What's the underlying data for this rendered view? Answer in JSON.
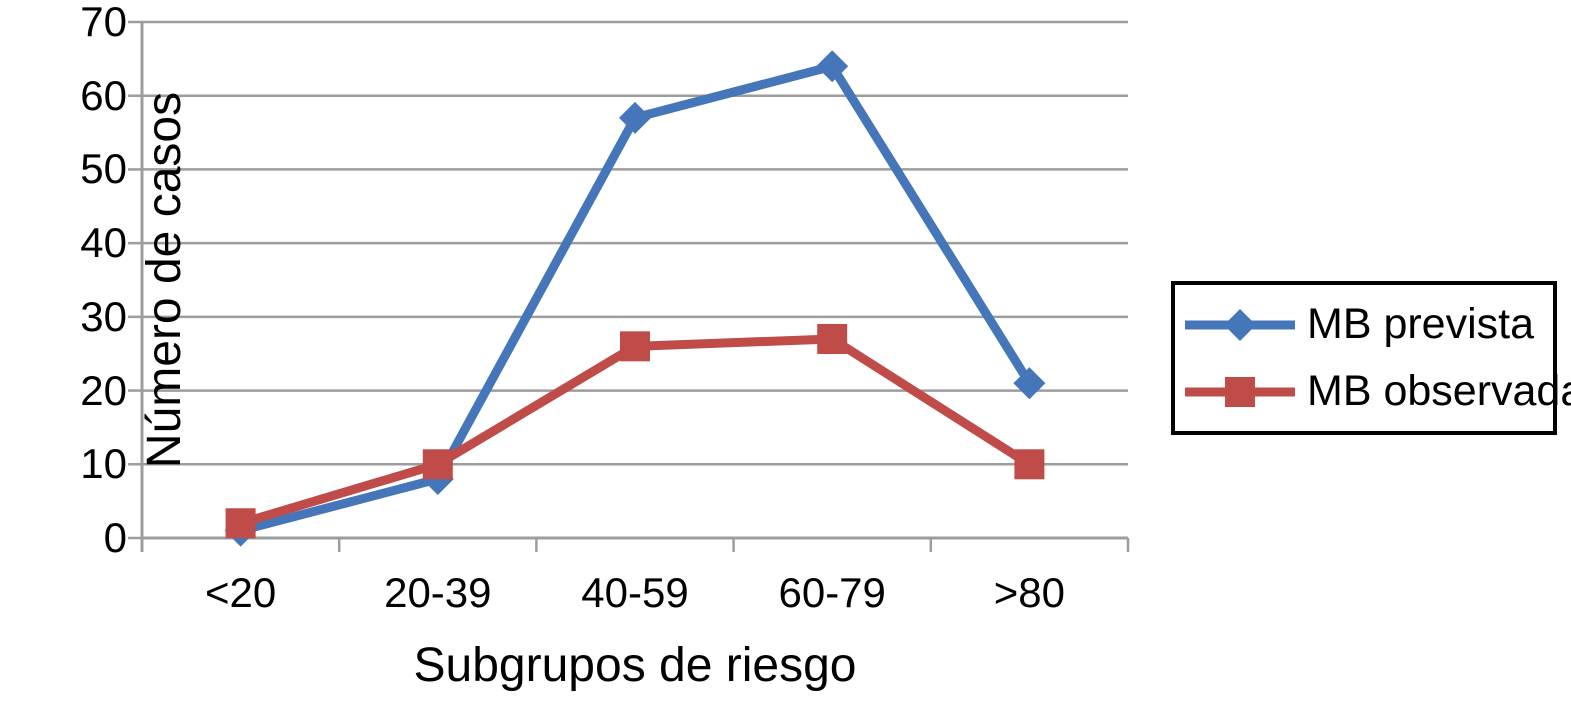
{
  "chart_data": {
    "type": "line",
    "title": "",
    "categories": [
      "<20",
      "20-39",
      "40-59",
      "60-79",
      ">80"
    ],
    "series": [
      {
        "name": "MB prevista",
        "values": [
          1,
          8,
          57,
          64,
          21
        ],
        "color": "#4476B9",
        "marker": "diamond"
      },
      {
        "name": "MB observada",
        "values": [
          2,
          10,
          26,
          27,
          10
        ],
        "color": "#BF4C48",
        "marker": "square"
      }
    ],
    "xlabel": "Subgrupos de riesgo",
    "ylabel": "Número de casos",
    "ylim": [
      0,
      70
    ],
    "ytick_step": 10,
    "yticks": [
      "0",
      "10",
      "20",
      "30",
      "40",
      "50",
      "60",
      "70"
    ],
    "grid": true,
    "legend_position": "right"
  },
  "colors": {
    "gridline": "#9D9D9D",
    "axis": "#9D9D9D",
    "text": "#000000",
    "legend_border": "#000000",
    "background": "#FFFFFF"
  }
}
